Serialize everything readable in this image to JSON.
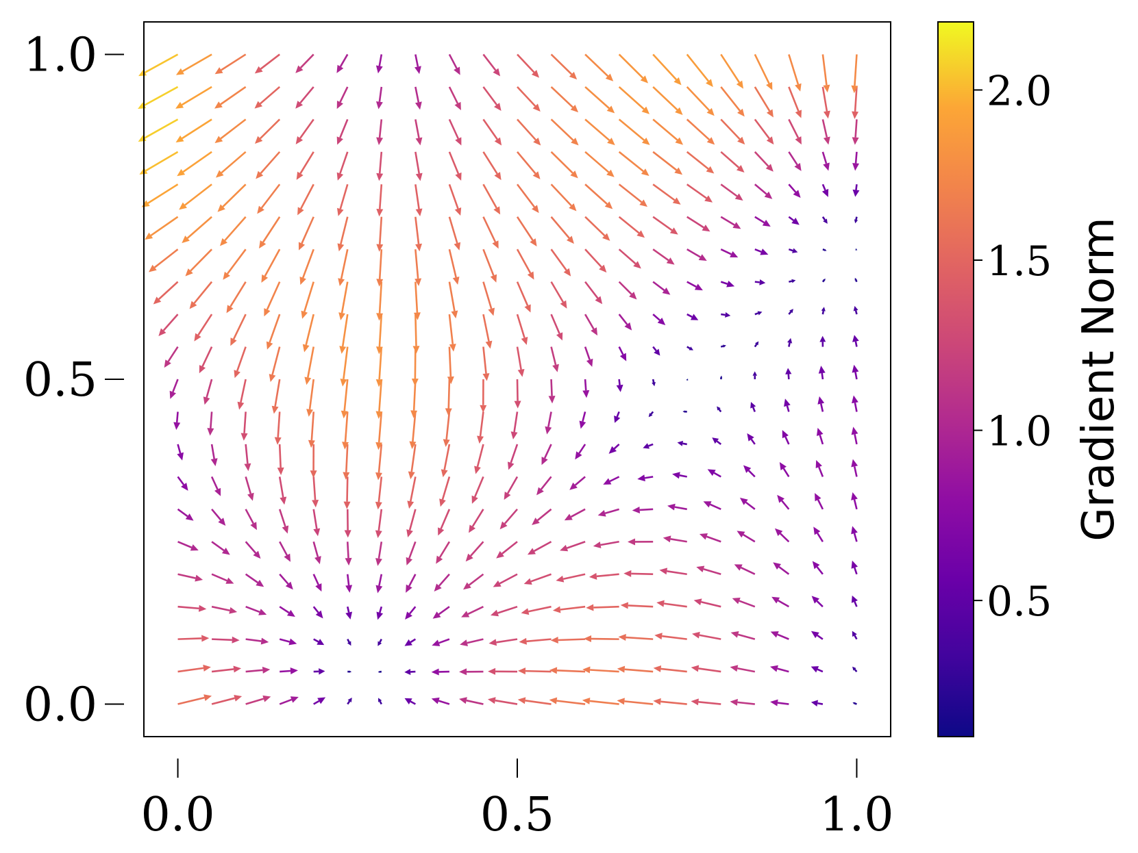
{
  "chart_data": {
    "type": "quiver",
    "x_range": [
      0.0,
      1.0
    ],
    "y_range": [
      0.0,
      1.0
    ],
    "grid_size": [
      21,
      21
    ],
    "xlim": [
      -0.05,
      1.05
    ],
    "ylim": [
      -0.05,
      1.05
    ],
    "xlabel": "",
    "ylabel": "",
    "x_ticks": [
      {
        "value": 0.0,
        "label": "0.0"
      },
      {
        "value": 0.5,
        "label": "0.5"
      },
      {
        "value": 1.0,
        "label": "1.0"
      }
    ],
    "y_ticks": [
      {
        "value": 0.0,
        "label": "0.0"
      },
      {
        "value": 0.5,
        "label": "0.5"
      },
      {
        "value": 1.0,
        "label": "1.0"
      }
    ],
    "field": "gradient of f(x,y) = 0.4·sin(4.2x+0.4)·cos(3.4y) − 0.75·(y−0.25)² − 0.3·x·y (approximate reconstruction)",
    "grid": false,
    "colormap": "plasma",
    "colorbar": {
      "label": "Gradient Norm",
      "range": [
        0.1,
        2.2
      ],
      "ticks": [
        {
          "value": 0.5,
          "label": "0.5"
        },
        {
          "value": 1.0,
          "label": "1.0"
        },
        {
          "value": 1.5,
          "label": "1.5"
        },
        {
          "value": 2.0,
          "label": "2.0"
        }
      ],
      "position": "right"
    }
  }
}
